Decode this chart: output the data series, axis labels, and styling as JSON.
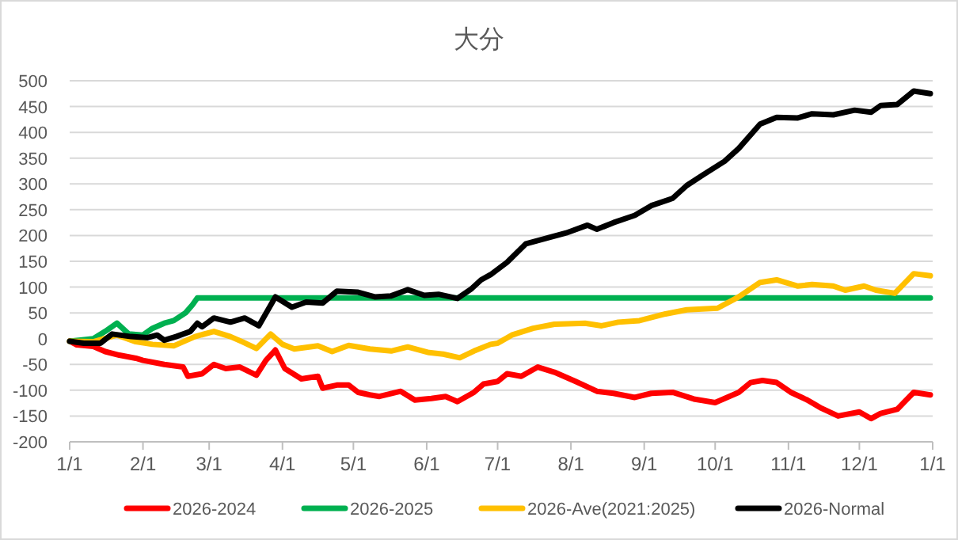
{
  "chart_data": {
    "type": "line",
    "title": "大分",
    "xlim": [
      "2026-01-01",
      "2027-01-01"
    ],
    "xticks": [
      {
        "value": "2026-01-01",
        "label": "1/1"
      },
      {
        "value": "2026-02-01",
        "label": "2/1"
      },
      {
        "value": "2026-03-01",
        "label": "3/1"
      },
      {
        "value": "2026-04-01",
        "label": "4/1"
      },
      {
        "value": "2026-05-01",
        "label": "5/1"
      },
      {
        "value": "2026-06-01",
        "label": "6/1"
      },
      {
        "value": "2026-07-01",
        "label": "7/1"
      },
      {
        "value": "2026-08-01",
        "label": "8/1"
      },
      {
        "value": "2026-09-01",
        "label": "9/1"
      },
      {
        "value": "2026-10-01",
        "label": "10/1"
      },
      {
        "value": "2026-11-01",
        "label": "11/1"
      },
      {
        "value": "2026-12-01",
        "label": "12/1"
      },
      {
        "value": "2027-01-01",
        "label": "1/1"
      }
    ],
    "ylim": [
      -200,
      500
    ],
    "yticks": [
      -200,
      -150,
      -100,
      -50,
      0,
      50,
      100,
      150,
      200,
      250,
      300,
      350,
      400,
      450,
      500
    ],
    "grid": "y",
    "legend": "bottom",
    "marker": "none",
    "line_style": "solid",
    "series": [
      {
        "name": "2026-2024",
        "color": "#ff0000",
        "x": [
          "2026-01-01",
          "2026-01-04",
          "2026-01-11",
          "2026-01-16",
          "2026-01-22",
          "2026-01-29",
          "2026-02-01",
          "2026-02-10",
          "2026-02-18",
          "2026-02-20",
          "2026-02-26",
          "2026-03-03",
          "2026-03-08",
          "2026-03-14",
          "2026-03-21",
          "2026-03-25",
          "2026-03-29",
          "2026-04-02",
          "2026-04-09",
          "2026-04-16",
          "2026-04-18",
          "2026-04-24",
          "2026-04-29",
          "2026-05-03",
          "2026-05-08",
          "2026-05-12",
          "2026-05-21",
          "2026-05-27",
          "2026-06-03",
          "2026-06-09",
          "2026-06-14",
          "2026-06-21",
          "2026-06-25",
          "2026-07-01",
          "2026-07-05",
          "2026-07-11",
          "2026-07-18",
          "2026-07-25",
          "2026-08-03",
          "2026-08-12",
          "2026-08-19",
          "2026-08-28",
          "2026-09-04",
          "2026-09-13",
          "2026-09-22",
          "2026-10-01",
          "2026-10-11",
          "2026-10-16",
          "2026-10-21",
          "2026-10-27",
          "2026-11-02",
          "2026-11-09",
          "2026-11-15",
          "2026-11-22",
          "2026-12-01",
          "2026-12-06",
          "2026-12-10",
          "2026-12-17",
          "2026-12-24",
          "2026-12-31"
        ],
        "values": [
          -5,
          -12,
          -15,
          -25,
          -32,
          -38,
          -42,
          -50,
          -55,
          -73,
          -68,
          -50,
          -58,
          -55,
          -71,
          -42,
          -22,
          -58,
          -78,
          -73,
          -96,
          -90,
          -90,
          -104,
          -109,
          -112,
          -102,
          -119,
          -116,
          -112,
          -122,
          -104,
          -88,
          -83,
          -68,
          -73,
          -55,
          -65,
          -83,
          -102,
          -106,
          -114,
          -106,
          -104,
          -117,
          -124,
          -104,
          -85,
          -81,
          -85,
          -104,
          -119,
          -135,
          -150,
          -142,
          -155,
          -145,
          -137,
          -104,
          -109
        ]
      },
      {
        "name": "2026-2025",
        "color": "#00b050",
        "x": [
          "2026-01-01",
          "2026-01-11",
          "2026-01-16",
          "2026-01-21",
          "2026-01-26",
          "2026-02-01",
          "2026-02-05",
          "2026-02-10",
          "2026-02-14",
          "2026-02-19",
          "2026-02-22",
          "2026-02-24",
          "2026-12-31"
        ],
        "values": [
          -5,
          0,
          14,
          30,
          9,
          7,
          20,
          30,
          35,
          50,
          66,
          79,
          79
        ]
      },
      {
        "name": "2026-Ave(2021:2025)",
        "color": "#ffc000",
        "x": [
          "2026-01-01",
          "2026-01-11",
          "2026-01-21",
          "2026-01-29",
          "2026-02-05",
          "2026-02-14",
          "2026-02-23",
          "2026-03-03",
          "2026-03-10",
          "2026-03-15",
          "2026-03-21",
          "2026-03-27",
          "2026-04-01",
          "2026-04-06",
          "2026-04-16",
          "2026-04-22",
          "2026-04-29",
          "2026-05-08",
          "2026-05-17",
          "2026-05-24",
          "2026-06-02",
          "2026-06-08",
          "2026-06-15",
          "2026-06-21",
          "2026-06-28",
          "2026-07-01",
          "2026-07-07",
          "2026-07-16",
          "2026-07-25",
          "2026-08-07",
          "2026-08-14",
          "2026-08-21",
          "2026-08-30",
          "2026-09-10",
          "2026-09-19",
          "2026-10-02",
          "2026-10-11",
          "2026-10-20",
          "2026-10-27",
          "2026-11-05",
          "2026-11-11",
          "2026-11-20",
          "2026-11-25",
          "2026-12-03",
          "2026-12-08",
          "2026-12-16",
          "2026-12-24",
          "2026-12-31"
        ],
        "values": [
          -5,
          -6,
          7,
          -6,
          -11,
          -14,
          4,
          14,
          4,
          -6,
          -19,
          9,
          -11,
          -20,
          -14,
          -25,
          -13,
          -20,
          -24,
          -16,
          -27,
          -30,
          -37,
          -24,
          -11,
          -9,
          7,
          20,
          28,
          30,
          25,
          32,
          35,
          48,
          56,
          59,
          81,
          109,
          114,
          102,
          105,
          102,
          94,
          102,
          94,
          88,
          126,
          122
        ]
      },
      {
        "name": "2026-Normal",
        "color": "#000000",
        "x": [
          "2026-01-01",
          "2026-01-07",
          "2026-01-14",
          "2026-01-19",
          "2026-01-27",
          "2026-02-03",
          "2026-02-07",
          "2026-02-10",
          "2026-02-15",
          "2026-02-21",
          "2026-02-24",
          "2026-02-26",
          "2026-03-03",
          "2026-03-10",
          "2026-03-16",
          "2026-03-22",
          "2026-03-29",
          "2026-04-05",
          "2026-04-11",
          "2026-04-18",
          "2026-04-24",
          "2026-05-03",
          "2026-05-10",
          "2026-05-17",
          "2026-05-24",
          "2026-05-31",
          "2026-06-06",
          "2026-06-14",
          "2026-06-20",
          "2026-06-24",
          "2026-06-28",
          "2026-07-05",
          "2026-07-13",
          "2026-07-21",
          "2026-07-30",
          "2026-08-08",
          "2026-08-12",
          "2026-08-19",
          "2026-08-28",
          "2026-09-04",
          "2026-09-13",
          "2026-09-19",
          "2026-09-26",
          "2026-10-05",
          "2026-10-11",
          "2026-10-20",
          "2026-10-27",
          "2026-11-05",
          "2026-11-11",
          "2026-11-20",
          "2026-11-29",
          "2026-12-06",
          "2026-12-10",
          "2026-12-17",
          "2026-12-24",
          "2026-12-31"
        ],
        "values": [
          -5,
          -9,
          -9,
          9,
          4,
          2,
          7,
          -3,
          4,
          14,
          30,
          23,
          40,
          32,
          40,
          25,
          81,
          61,
          71,
          69,
          92,
          90,
          81,
          83,
          95,
          84,
          86,
          78,
          97,
          114,
          124,
          148,
          184,
          194,
          205,
          220,
          212,
          225,
          239,
          258,
          272,
          297,
          318,
          344,
          369,
          416,
          429,
          428,
          436,
          434,
          443,
          439,
          452,
          454,
          480,
          475
        ]
      }
    ]
  }
}
